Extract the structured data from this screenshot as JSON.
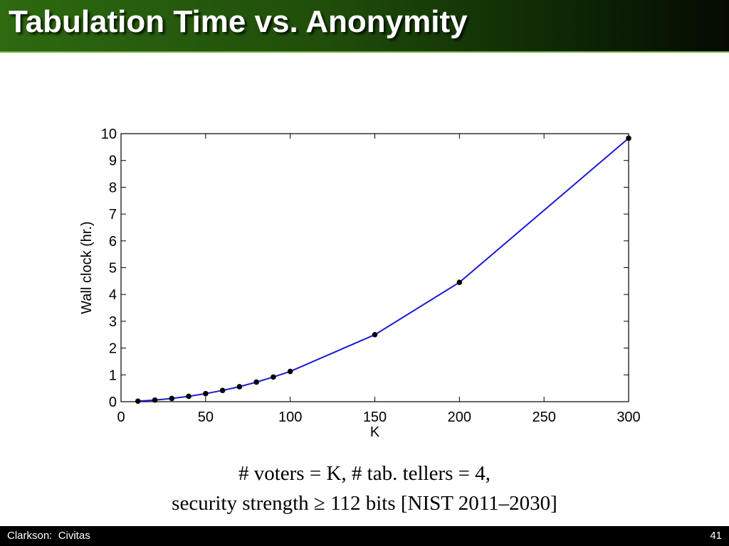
{
  "slide": {
    "title": "Tabulation Time vs. Anonymity",
    "caption_line1": "# voters = K, # tab. tellers = 4,",
    "caption_line2": "security strength ≥ 112 bits [NIST 2011–2030]",
    "footer_left": "Clarkson:  Civitas",
    "page_number": "41"
  },
  "colors": {
    "title_text": "#ffffff",
    "series_line": "#1a1ad6",
    "markers": "#000000"
  },
  "chart_data": {
    "type": "line",
    "xlabel": "K",
    "ylabel": "Wall clock (hr.)",
    "xlim": [
      0,
      300
    ],
    "ylim": [
      0,
      10
    ],
    "xticks": [
      0,
      50,
      100,
      150,
      200,
      250,
      300
    ],
    "yticks": [
      0,
      1,
      2,
      3,
      4,
      5,
      6,
      7,
      8,
      9,
      10
    ],
    "grid": false,
    "series": [
      {
        "x": [
          10,
          20,
          30,
          40,
          50,
          60,
          70,
          80,
          90,
          100,
          150,
          200,
          300
        ],
        "y": [
          0.02,
          0.06,
          0.12,
          0.2,
          0.3,
          0.42,
          0.56,
          0.73,
          0.92,
          1.13,
          2.5,
          4.45,
          9.83
        ]
      }
    ]
  }
}
